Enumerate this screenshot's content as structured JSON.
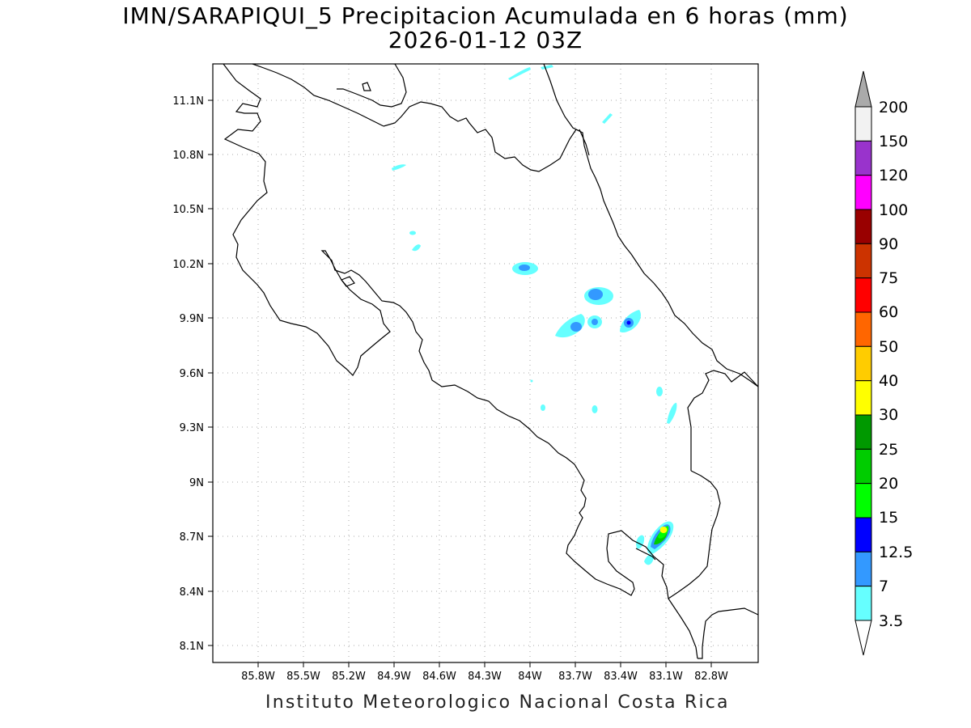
{
  "title_line1": "IMN/SARAPIQUI_5 Precipitacion Acumulada en 6 horas (mm)",
  "title_line2": "2026-01-12 03Z",
  "footer": "Instituto Meteorologico Nacional Costa Rica",
  "map": {
    "lon_range": [
      -86.0,
      -82.6
    ],
    "lat_range": [
      8.0,
      11.3
    ],
    "lon_ticks": [
      "85.8W",
      "85.5W",
      "85.2W",
      "84.9W",
      "84.6W",
      "84.3W",
      "84W",
      "83.7W",
      "83.4W",
      "83.1W",
      "82.8W"
    ],
    "lat_ticks": [
      "11.1N",
      "10.8N",
      "10.5N",
      "10.2N",
      "9.9N",
      "9.6N",
      "9.3N",
      "9N",
      "8.7N",
      "8.4N",
      "8.1N"
    ],
    "grid": true
  },
  "colorbar": {
    "labels": [
      "200",
      "150",
      "120",
      "100",
      "90",
      "75",
      "60",
      "50",
      "40",
      "30",
      "25",
      "20",
      "15",
      "12.5",
      "7",
      "3.5"
    ],
    "colors": [
      "#f2f2f2",
      "#9933cc",
      "#ff00ff",
      "#990000",
      "#cc3300",
      "#ff0000",
      "#ff6600",
      "#ffcc00",
      "#ffff00",
      "#009900",
      "#00cc00",
      "#00ff00",
      "#0000ff",
      "#3399ff",
      "#66ffff"
    ],
    "top_arrow_color": "#aaaaaa",
    "bottom_arrow_color": "#ffffff"
  }
}
